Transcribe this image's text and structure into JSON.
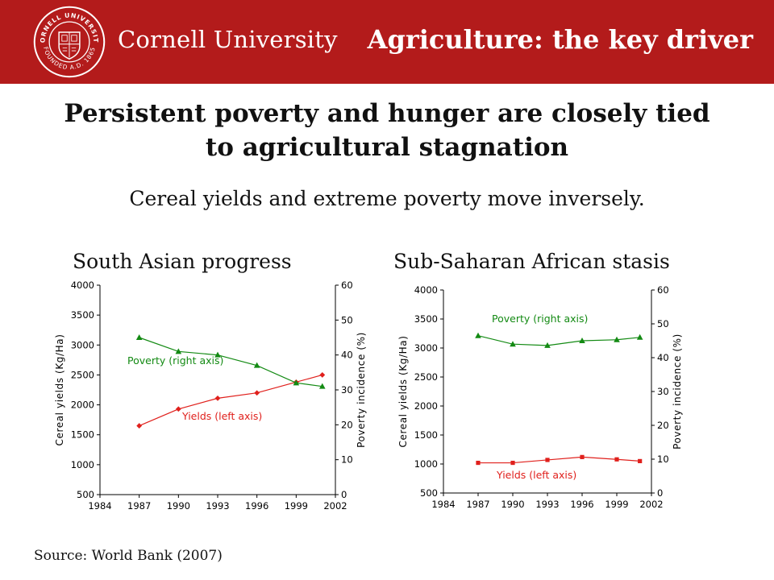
{
  "header": {
    "university": "Cornell University",
    "topic": "Agriculture: the key driver",
    "seal_text_top": "CORNELL UNIVERSITY",
    "seal_text_bottom": "FOUNDED A.D. 1865",
    "background_color": "#b31b1b"
  },
  "headline": {
    "line1": "Persistent poverty and hunger are closely tied",
    "line2": "to agricultural stagnation"
  },
  "subhead": "Cereal yields and extreme poverty move inversely.",
  "footer": {
    "source": "Source: World Bank (2007)"
  },
  "chart_data": [
    {
      "type": "line",
      "title": "South Asian progress",
      "xlabel": "",
      "ylabel": "Cereal yields (Kg/Ha)",
      "y2label": "Poverty incidence (%)",
      "xlim": [
        1984,
        2002
      ],
      "xticks": [
        "1984",
        "1987",
        "1990",
        "1993",
        "1996",
        "1999",
        "2002"
      ],
      "ylim": [
        500,
        4000
      ],
      "yticks": [
        "500",
        "1000",
        "1500",
        "2000",
        "2500",
        "3000",
        "3500",
        "4000"
      ],
      "y2lim": [
        0,
        60
      ],
      "y2ticks": [
        "0",
        "10",
        "20",
        "30",
        "40",
        "50",
        "60"
      ],
      "grid": false,
      "series": [
        {
          "name": "Yields (left axis)",
          "axis": "left",
          "color": "#e0201c",
          "marker": "diamond",
          "x": [
            1987,
            1990,
            1993,
            1996,
            1999,
            2001
          ],
          "y": [
            1650,
            1930,
            2110,
            2200,
            2380,
            2500
          ]
        },
        {
          "name": "Poverty (right axis)",
          "axis": "right",
          "color": "#138a13",
          "marker": "triangle",
          "x": [
            1987,
            1990,
            1993,
            1996,
            1999,
            2001
          ],
          "y": [
            45,
            41,
            40,
            37,
            32,
            31
          ]
        }
      ]
    },
    {
      "type": "line",
      "title": "Sub-Saharan African stasis",
      "xlabel": "",
      "ylabel": "Cereal yields (Kg/Ha)",
      "y2label": "Poverty incidence (%)",
      "xlim": [
        1984,
        2002
      ],
      "xticks": [
        "1984",
        "1987",
        "1990",
        "1993",
        "1996",
        "1999",
        "2002"
      ],
      "ylim": [
        500,
        4000
      ],
      "yticks": [
        "500",
        "1000",
        "1500",
        "2000",
        "2500",
        "3000",
        "3500",
        "4000"
      ],
      "y2lim": [
        0,
        60
      ],
      "y2ticks": [
        "0",
        "10",
        "20",
        "30",
        "40",
        "50",
        "60"
      ],
      "grid": false,
      "series": [
        {
          "name": "Poverty (right axis)",
          "axis": "right",
          "color": "#138a13",
          "marker": "triangle",
          "x": [
            1987,
            1990,
            1993,
            1996,
            1999,
            2001
          ],
          "y": [
            46.5,
            44,
            43.6,
            45,
            45.3,
            46
          ]
        },
        {
          "name": "Yields (left axis)",
          "axis": "left",
          "color": "#e0201c",
          "marker": "square",
          "x": [
            1987,
            1990,
            1993,
            1996,
            1999,
            2001
          ],
          "y": [
            1020,
            1020,
            1070,
            1120,
            1080,
            1050
          ]
        }
      ]
    }
  ]
}
